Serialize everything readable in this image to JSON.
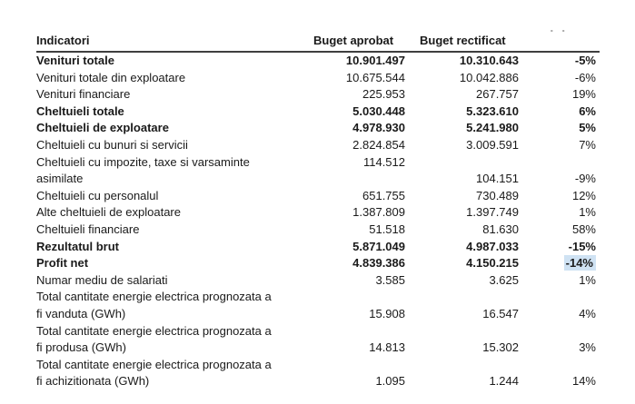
{
  "document": {
    "corner_mark": "- -",
    "highlight_color": "#cfe2f3",
    "text_color": "#1a1a1a"
  },
  "table": {
    "columns": {
      "indicatori": "Indicatori",
      "aprobat": "Buget aprobat",
      "rectificat": "Buget rectificat",
      "pct": ""
    },
    "rows": [
      {
        "label": "Venituri totale",
        "aprobat": "10.901.497",
        "rectificat": "10.310.643",
        "pct": "-5%",
        "bold": true,
        "highlight_pct": false
      },
      {
        "label": "Venituri totale din exploatare",
        "aprobat": "10.675.544",
        "rectificat": "10.042.886",
        "pct": "-6%",
        "bold": false,
        "highlight_pct": false
      },
      {
        "label": "Venituri financiare",
        "aprobat": "225.953",
        "rectificat": "267.757",
        "pct": "19%",
        "bold": false,
        "highlight_pct": false
      },
      {
        "label": "Cheltuieli totale",
        "aprobat": "5.030.448",
        "rectificat": "5.323.610",
        "pct": "6%",
        "bold": true,
        "highlight_pct": false
      },
      {
        "label": "Cheltuieli de exploatare",
        "aprobat": "4.978.930",
        "rectificat": "5.241.980",
        "pct": "5%",
        "bold": true,
        "highlight_pct": false
      },
      {
        "label": "Cheltuieli cu bunuri si servicii",
        "aprobat": "2.824.854",
        "rectificat": "3.009.591",
        "pct": "7%",
        "bold": false,
        "highlight_pct": false
      },
      {
        "label": "Cheltuieli cu impozite, taxe si varsaminte",
        "aprobat": "114.512",
        "rectificat": "",
        "pct": "",
        "bold": false,
        "highlight_pct": false
      },
      {
        "label": "asimilate",
        "aprobat": "",
        "rectificat": "104.151",
        "pct": "-9%",
        "bold": false,
        "highlight_pct": false
      },
      {
        "label": "Cheltuieli cu personalul",
        "aprobat": "651.755",
        "rectificat": "730.489",
        "pct": "12%",
        "bold": false,
        "highlight_pct": false
      },
      {
        "label": "Alte cheltuieli de exploatare",
        "aprobat": "1.387.809",
        "rectificat": "1.397.749",
        "pct": "1%",
        "bold": false,
        "highlight_pct": false
      },
      {
        "label": "Cheltuieli financiare",
        "aprobat": "51.518",
        "rectificat": "81.630",
        "pct": "58%",
        "bold": false,
        "highlight_pct": false
      },
      {
        "label": "Rezultatul brut",
        "aprobat": "5.871.049",
        "rectificat": "4.987.033",
        "pct": "-15%",
        "bold": true,
        "highlight_pct": false
      },
      {
        "label": "Profit net",
        "aprobat": "4.839.386",
        "rectificat": "4.150.215",
        "pct": "-14%",
        "bold": true,
        "highlight_pct": true
      },
      {
        "label": "Numar mediu de salariati",
        "aprobat": "3.585",
        "rectificat": "3.625",
        "pct": "1%",
        "bold": false,
        "highlight_pct": false
      },
      {
        "label": "Total cantitate energie electrica prognozata a",
        "aprobat": "",
        "rectificat": "",
        "pct": "",
        "bold": false,
        "highlight_pct": false
      },
      {
        "label": "fi vanduta (GWh)",
        "aprobat": "15.908",
        "rectificat": "16.547",
        "pct": "4%",
        "bold": false,
        "highlight_pct": false
      },
      {
        "label": "Total cantitate energie electrica prognozata a",
        "aprobat": "",
        "rectificat": "",
        "pct": "",
        "bold": false,
        "highlight_pct": false
      },
      {
        "label": "fi produsa (GWh)",
        "aprobat": "14.813",
        "rectificat": "15.302",
        "pct": "3%",
        "bold": false,
        "highlight_pct": false
      },
      {
        "label": "Total cantitate energie electrica prognozata a",
        "aprobat": "",
        "rectificat": "",
        "pct": "",
        "bold": false,
        "highlight_pct": false
      },
      {
        "label": "fi achizitionata (GWh)",
        "aprobat": "1.095",
        "rectificat": "1.244",
        "pct": "14%",
        "bold": false,
        "highlight_pct": false
      }
    ]
  }
}
